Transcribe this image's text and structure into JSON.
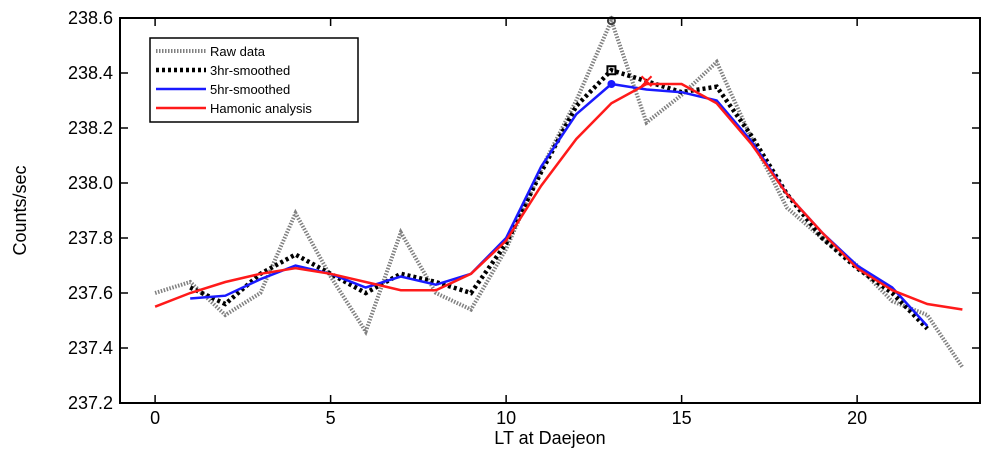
{
  "chart_data": {
    "type": "line",
    "title": "",
    "xlabel": "LT at Daejeon",
    "ylabel": "Counts/sec",
    "xlim": [
      -1,
      23.5
    ],
    "ylim": [
      237.2,
      238.6
    ],
    "xticks": [
      0,
      5,
      10,
      15,
      20
    ],
    "yticks": [
      237.2,
      237.4,
      237.6,
      237.8,
      238.0,
      238.2,
      238.4,
      238.6
    ],
    "xtick_labels": [
      "0",
      "5",
      "10",
      "15",
      "20"
    ],
    "ytick_labels": [
      "237.2",
      "237.4",
      "237.6",
      "237.8",
      "238.0",
      "238.2",
      "238.4",
      "238.6"
    ],
    "grid": false,
    "legend_position": "top-left",
    "series": [
      {
        "name": "Raw data",
        "style": "dotted-gray",
        "color": "#808080",
        "x": [
          0,
          1,
          2,
          3,
          4,
          5,
          6,
          7,
          8,
          9,
          10,
          11,
          12,
          13,
          14,
          15,
          16,
          17,
          18,
          19,
          20,
          21,
          22,
          23
        ],
        "values": [
          237.6,
          237.64,
          237.52,
          237.6,
          237.89,
          237.66,
          237.46,
          237.82,
          237.6,
          237.54,
          237.76,
          238.05,
          238.3,
          238.59,
          238.22,
          238.32,
          238.44,
          238.16,
          237.91,
          237.8,
          237.7,
          237.57,
          237.52,
          237.33
        ]
      },
      {
        "name": "3hr-smoothed",
        "style": "dotted-black",
        "color": "#000000",
        "x": [
          1,
          2,
          3,
          4,
          5,
          6,
          7,
          8,
          9,
          10,
          11,
          12,
          13,
          14,
          15,
          16,
          17,
          18,
          19,
          20,
          21,
          22
        ],
        "values": [
          237.62,
          237.56,
          237.67,
          237.74,
          237.67,
          237.6,
          237.67,
          237.64,
          237.6,
          237.78,
          238.04,
          238.28,
          238.41,
          238.37,
          238.33,
          238.35,
          238.17,
          237.96,
          237.8,
          237.69,
          237.6,
          237.47
        ]
      },
      {
        "name": "5hr-smoothed",
        "style": "solid",
        "color": "#1a1aff",
        "x": [
          1,
          2,
          3,
          4,
          5,
          6,
          7,
          8,
          9,
          10,
          11,
          12,
          13,
          14,
          15,
          16,
          17,
          18,
          19,
          20,
          21,
          22
        ],
        "values": [
          237.58,
          237.59,
          237.65,
          237.7,
          237.67,
          237.62,
          237.66,
          237.63,
          237.67,
          237.8,
          238.06,
          238.25,
          238.36,
          238.34,
          238.33,
          238.3,
          238.15,
          237.96,
          237.82,
          237.7,
          237.62,
          237.48
        ]
      },
      {
        "name": "Hamonic analysis",
        "style": "solid",
        "color": "#ff1a1a",
        "x": [
          0,
          1,
          2,
          3,
          4,
          5,
          6,
          7,
          8,
          9,
          10,
          11,
          12,
          13,
          14,
          15,
          16,
          17,
          18,
          19,
          20,
          21,
          22,
          23
        ],
        "values": [
          237.55,
          237.6,
          237.64,
          237.67,
          237.69,
          237.67,
          237.64,
          237.61,
          237.61,
          237.67,
          237.79,
          237.99,
          238.16,
          238.29,
          238.36,
          238.36,
          238.29,
          238.14,
          237.96,
          237.82,
          237.69,
          237.61,
          237.56,
          237.54
        ]
      }
    ],
    "markers": [
      {
        "series": "Raw data",
        "x": 13,
        "y": 238.59,
        "symbol": "circle",
        "color": "#404040"
      },
      {
        "series": "3hr-smoothed",
        "x": 13,
        "y": 238.41,
        "symbol": "square",
        "color": "#000000"
      },
      {
        "series": "5hr-smoothed",
        "x": 13,
        "y": 238.36,
        "symbol": "dot",
        "color": "#1a1aff"
      },
      {
        "series": "Hamonic analysis",
        "x": 14,
        "y": 238.37,
        "symbol": "cross",
        "color": "#ff1a1a"
      }
    ]
  }
}
